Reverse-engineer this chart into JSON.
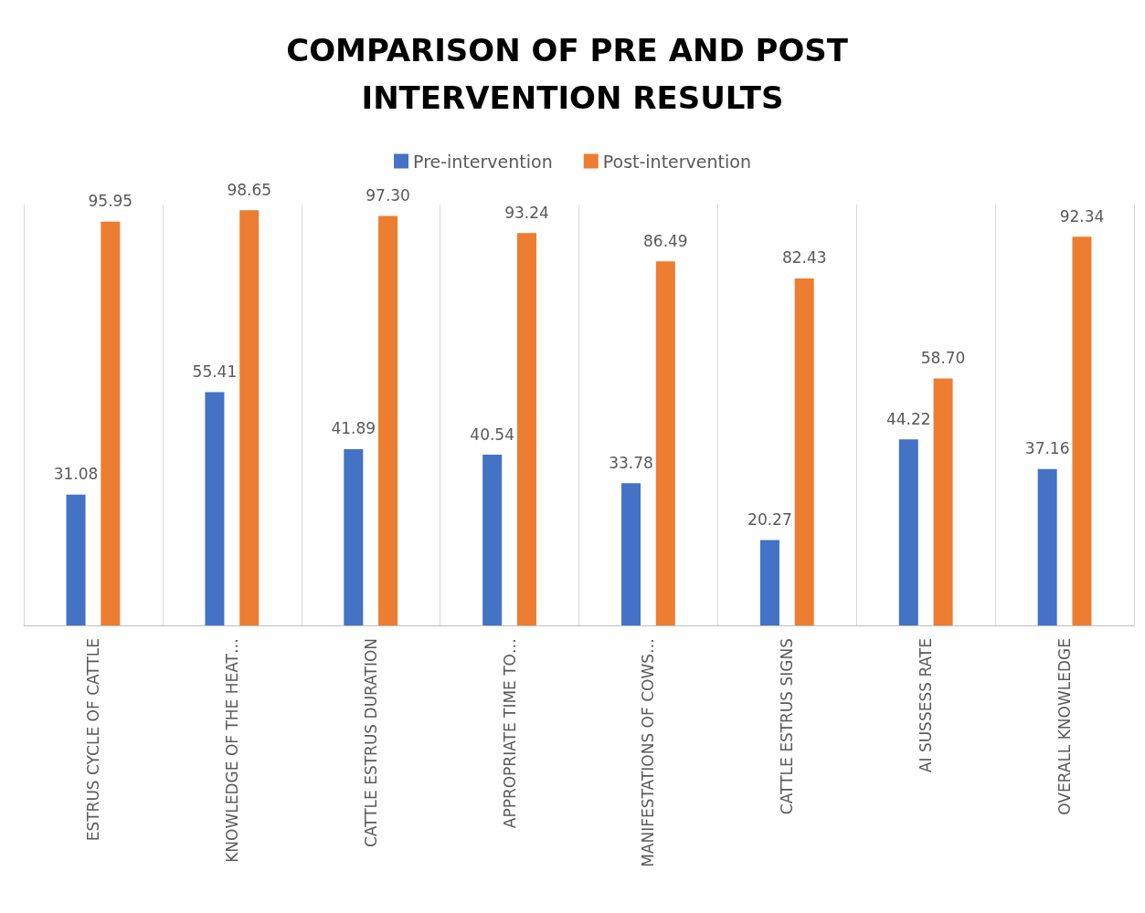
{
  "chart_data": {
    "type": "bar",
    "title": "COMPARISON OF PRE AND POST INTERVENTION RESULTS",
    "categories": [
      "ESTRUS CYCLE OF CATTLE",
      "KNOWLEDGE OF THE HEAT…",
      "CATTLE ESTRUS DURATION",
      "APPROPRIATE TIME TO…",
      "MANIFESTATIONS OF COWS…",
      "CATTLE ESTRUS SIGNS",
      "AI SUSSESS RATE",
      "OVERALL KNOWLEDGE"
    ],
    "series": [
      {
        "name": "Pre-intervention",
        "color": "#4472c4",
        "values": [
          31.08,
          55.41,
          41.89,
          40.54,
          33.78,
          20.27,
          44.22,
          37.16
        ],
        "value_labels": [
          "31.08",
          "55.41",
          "41.89",
          "40.54",
          "33.78",
          "20.27",
          "44.22",
          "37.16"
        ]
      },
      {
        "name": "Post-intervention",
        "color": "#ed7d31",
        "values": [
          95.95,
          98.65,
          97.3,
          93.24,
          86.49,
          82.43,
          58.7,
          92.34
        ],
        "value_labels": [
          "95.95",
          "98.65",
          "97.30",
          "93.24",
          "86.49",
          "82.43",
          "58.70",
          "92.34"
        ]
      }
    ],
    "grid": "x",
    "legend": "top"
  }
}
